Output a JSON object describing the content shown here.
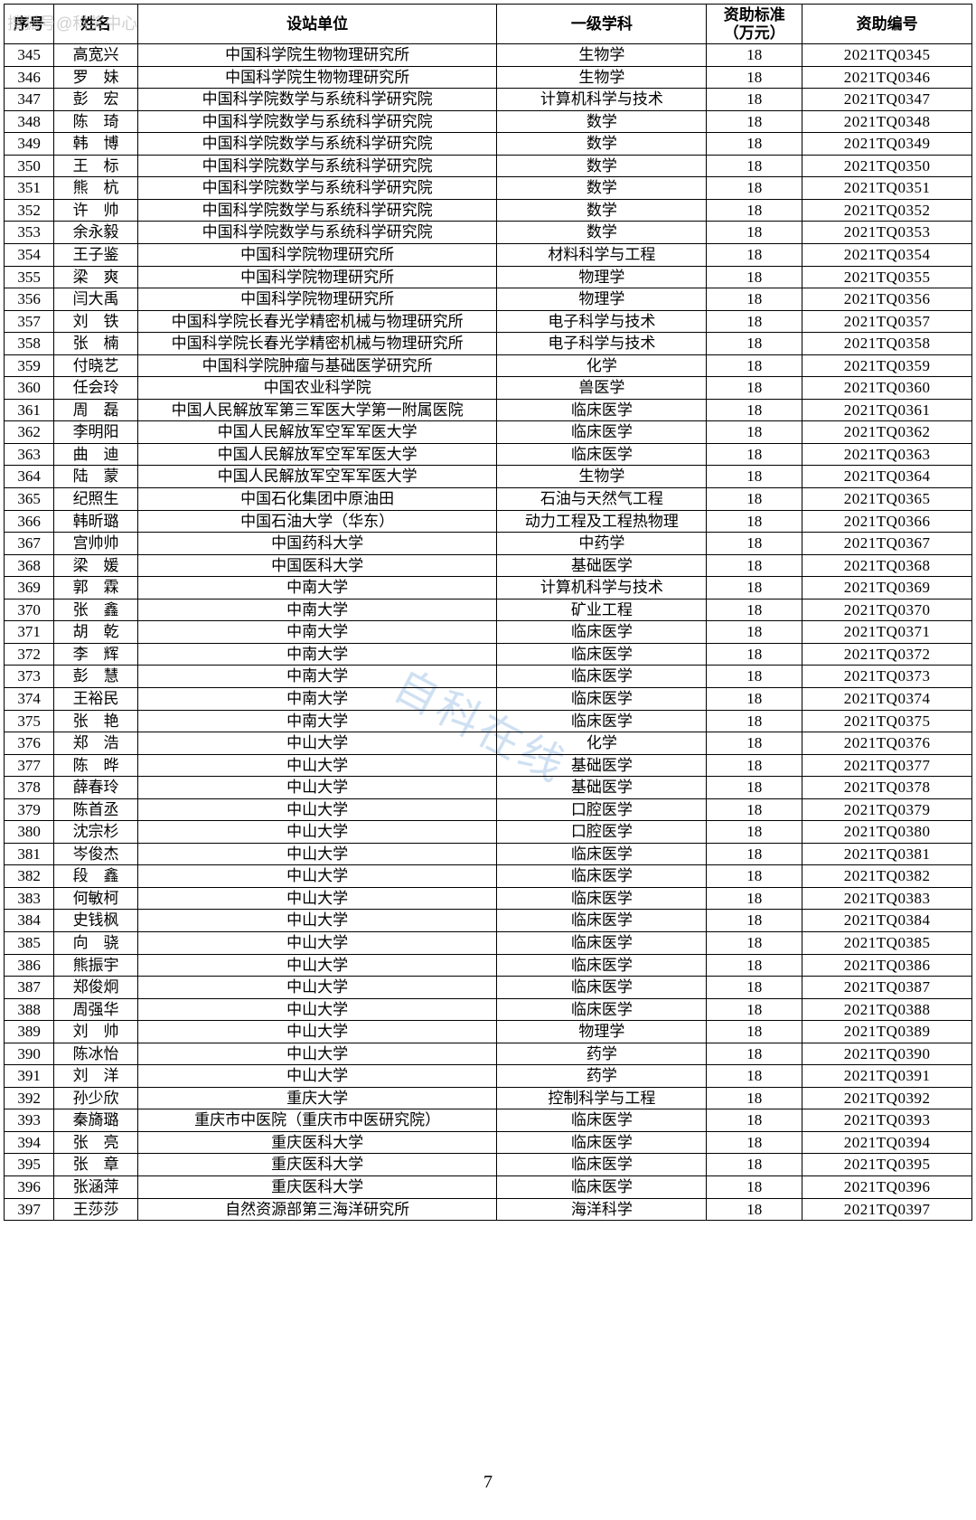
{
  "watermark_top": "搜狐号@科奖中心",
  "watermark_center": "自科在线",
  "page_number": "7",
  "columns": [
    "序号",
    "姓名",
    "设站单位",
    "一级学科",
    "资助标准（万元）",
    "资助编号"
  ],
  "rows": [
    [
      "345",
      "高宽兴",
      "中国科学院生物物理研究所",
      "生物学",
      "18",
      "2021TQ0345"
    ],
    [
      "346",
      "罗　妹",
      "中国科学院生物物理研究所",
      "生物学",
      "18",
      "2021TQ0346"
    ],
    [
      "347",
      "彭　宏",
      "中国科学院数学与系统科学研究院",
      "计算机科学与技术",
      "18",
      "2021TQ0347"
    ],
    [
      "348",
      "陈　琦",
      "中国科学院数学与系统科学研究院",
      "数学",
      "18",
      "2021TQ0348"
    ],
    [
      "349",
      "韩　博",
      "中国科学院数学与系统科学研究院",
      "数学",
      "18",
      "2021TQ0349"
    ],
    [
      "350",
      "王　标",
      "中国科学院数学与系统科学研究院",
      "数学",
      "18",
      "2021TQ0350"
    ],
    [
      "351",
      "熊　杭",
      "中国科学院数学与系统科学研究院",
      "数学",
      "18",
      "2021TQ0351"
    ],
    [
      "352",
      "许　帅",
      "中国科学院数学与系统科学研究院",
      "数学",
      "18",
      "2021TQ0352"
    ],
    [
      "353",
      "余永毅",
      "中国科学院数学与系统科学研究院",
      "数学",
      "18",
      "2021TQ0353"
    ],
    [
      "354",
      "王子鉴",
      "中国科学院物理研究所",
      "材料科学与工程",
      "18",
      "2021TQ0354"
    ],
    [
      "355",
      "梁　爽",
      "中国科学院物理研究所",
      "物理学",
      "18",
      "2021TQ0355"
    ],
    [
      "356",
      "闫大禹",
      "中国科学院物理研究所",
      "物理学",
      "18",
      "2021TQ0356"
    ],
    [
      "357",
      "刘　铁",
      "中国科学院长春光学精密机械与物理研究所",
      "电子科学与技术",
      "18",
      "2021TQ0357"
    ],
    [
      "358",
      "张　楠",
      "中国科学院长春光学精密机械与物理研究所",
      "电子科学与技术",
      "18",
      "2021TQ0358"
    ],
    [
      "359",
      "付晓艺",
      "中国科学院肿瘤与基础医学研究所",
      "化学",
      "18",
      "2021TQ0359"
    ],
    [
      "360",
      "任会玲",
      "中国农业科学院",
      "兽医学",
      "18",
      "2021TQ0360"
    ],
    [
      "361",
      "周　磊",
      "中国人民解放军第三军医大学第一附属医院",
      "临床医学",
      "18",
      "2021TQ0361"
    ],
    [
      "362",
      "李明阳",
      "中国人民解放军空军军医大学",
      "临床医学",
      "18",
      "2021TQ0362"
    ],
    [
      "363",
      "曲　迪",
      "中国人民解放军空军军医大学",
      "临床医学",
      "18",
      "2021TQ0363"
    ],
    [
      "364",
      "陆　蒙",
      "中国人民解放军空军军医大学",
      "生物学",
      "18",
      "2021TQ0364"
    ],
    [
      "365",
      "纪照生",
      "中国石化集团中原油田",
      "石油与天然气工程",
      "18",
      "2021TQ0365"
    ],
    [
      "366",
      "韩昕璐",
      "中国石油大学（华东）",
      "动力工程及工程热物理",
      "18",
      "2021TQ0366"
    ],
    [
      "367",
      "宫帅帅",
      "中国药科大学",
      "中药学",
      "18",
      "2021TQ0367"
    ],
    [
      "368",
      "梁　媛",
      "中国医科大学",
      "基础医学",
      "18",
      "2021TQ0368"
    ],
    [
      "369",
      "郭　霖",
      "中南大学",
      "计算机科学与技术",
      "18",
      "2021TQ0369"
    ],
    [
      "370",
      "张　鑫",
      "中南大学",
      "矿业工程",
      "18",
      "2021TQ0370"
    ],
    [
      "371",
      "胡　乾",
      "中南大学",
      "临床医学",
      "18",
      "2021TQ0371"
    ],
    [
      "372",
      "李　辉",
      "中南大学",
      "临床医学",
      "18",
      "2021TQ0372"
    ],
    [
      "373",
      "彭　慧",
      "中南大学",
      "临床医学",
      "18",
      "2021TQ0373"
    ],
    [
      "374",
      "王裕民",
      "中南大学",
      "临床医学",
      "18",
      "2021TQ0374"
    ],
    [
      "375",
      "张　艳",
      "中南大学",
      "临床医学",
      "18",
      "2021TQ0375"
    ],
    [
      "376",
      "郑　浩",
      "中山大学",
      "化学",
      "18",
      "2021TQ0376"
    ],
    [
      "377",
      "陈　晔",
      "中山大学",
      "基础医学",
      "18",
      "2021TQ0377"
    ],
    [
      "378",
      "薛春玲",
      "中山大学",
      "基础医学",
      "18",
      "2021TQ0378"
    ],
    [
      "379",
      "陈首丞",
      "中山大学",
      "口腔医学",
      "18",
      "2021TQ0379"
    ],
    [
      "380",
      "沈宗杉",
      "中山大学",
      "口腔医学",
      "18",
      "2021TQ0380"
    ],
    [
      "381",
      "岑俊杰",
      "中山大学",
      "临床医学",
      "18",
      "2021TQ0381"
    ],
    [
      "382",
      "段　鑫",
      "中山大学",
      "临床医学",
      "18",
      "2021TQ0382"
    ],
    [
      "383",
      "何敏柯",
      "中山大学",
      "临床医学",
      "18",
      "2021TQ0383"
    ],
    [
      "384",
      "史钱枫",
      "中山大学",
      "临床医学",
      "18",
      "2021TQ0384"
    ],
    [
      "385",
      "向　骁",
      "中山大学",
      "临床医学",
      "18",
      "2021TQ0385"
    ],
    [
      "386",
      "熊振宇",
      "中山大学",
      "临床医学",
      "18",
      "2021TQ0386"
    ],
    [
      "387",
      "郑俊炯",
      "中山大学",
      "临床医学",
      "18",
      "2021TQ0387"
    ],
    [
      "388",
      "周强华",
      "中山大学",
      "临床医学",
      "18",
      "2021TQ0388"
    ],
    [
      "389",
      "刘　帅",
      "中山大学",
      "物理学",
      "18",
      "2021TQ0389"
    ],
    [
      "390",
      "陈冰怡",
      "中山大学",
      "药学",
      "18",
      "2021TQ0390"
    ],
    [
      "391",
      "刘　洋",
      "中山大学",
      "药学",
      "18",
      "2021TQ0391"
    ],
    [
      "392",
      "孙少欣",
      "重庆大学",
      "控制科学与工程",
      "18",
      "2021TQ0392"
    ],
    [
      "393",
      "秦旖璐",
      "重庆市中医院（重庆市中医研究院）",
      "临床医学",
      "18",
      "2021TQ0393"
    ],
    [
      "394",
      "张　亮",
      "重庆医科大学",
      "临床医学",
      "18",
      "2021TQ0394"
    ],
    [
      "395",
      "张　章",
      "重庆医科大学",
      "临床医学",
      "18",
      "2021TQ0395"
    ],
    [
      "396",
      "张涵萍",
      "重庆医科大学",
      "临床医学",
      "18",
      "2021TQ0396"
    ],
    [
      "397",
      "王莎莎",
      "自然资源部第三海洋研究所",
      "海洋科学",
      "18",
      "2021TQ0397"
    ]
  ]
}
